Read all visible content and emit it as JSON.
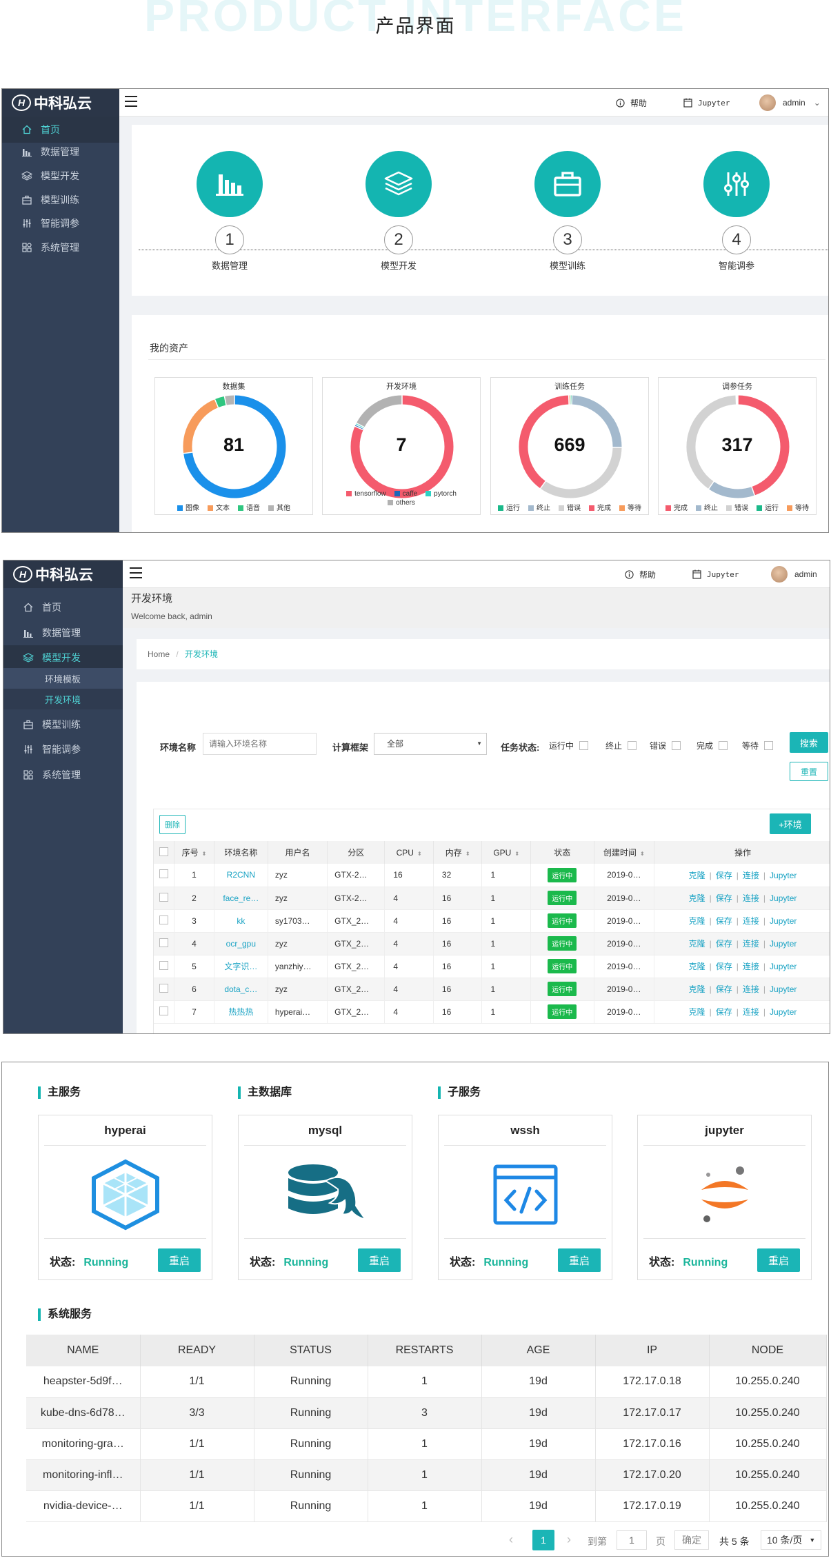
{
  "header": {
    "bg_text": "PRODUCT INTERFACE",
    "title": "产品界面"
  },
  "app": {
    "logo": "中科弘云",
    "help": "帮助",
    "jupyter": "Jupyter",
    "user": "admin"
  },
  "shot1": {
    "nav": [
      {
        "label": "首页",
        "icon": "home-icon"
      },
      {
        "label": "数据管理",
        "icon": "bar-chart-icon"
      },
      {
        "label": "模型开发",
        "icon": "layers-icon"
      },
      {
        "label": "模型训练",
        "icon": "briefcase-icon"
      },
      {
        "label": "智能调参",
        "icon": "sliders-icon"
      },
      {
        "label": "系统管理",
        "icon": "grid-icon"
      }
    ],
    "steps": [
      {
        "num": "1",
        "label": "数据管理",
        "icon": "bar-chart-icon"
      },
      {
        "num": "2",
        "label": "模型开发",
        "icon": "layers-icon"
      },
      {
        "num": "3",
        "label": "模型训练",
        "icon": "briefcase-icon"
      },
      {
        "num": "4",
        "label": "智能调参",
        "icon": "sliders-icon"
      }
    ],
    "assets_title": "我的资产"
  },
  "chart_data": [
    {
      "type": "pie",
      "title": "数据集",
      "total": "81",
      "series": [
        {
          "label": "图像",
          "value": 70,
          "color": "#1a90ea"
        },
        {
          "label": "文本",
          "value": 20,
          "color": "#f79b5b"
        },
        {
          "label": "语音",
          "value": 3,
          "color": "#2fc680"
        },
        {
          "label": "其他",
          "value": 3,
          "color": "#b4b4b4"
        }
      ]
    },
    {
      "type": "pie",
      "title": "开发环境",
      "total": "7",
      "series": [
        {
          "label": "tensorflow",
          "value": 75,
          "color": "#f45b6d"
        },
        {
          "label": "caffe",
          "value": 0.5,
          "color": "#1a66b8"
        },
        {
          "label": "pytorch",
          "value": 0.5,
          "color": "#2cd2c4"
        },
        {
          "label": "others",
          "value": 16,
          "color": "#b2b2b2"
        }
      ]
    },
    {
      "type": "pie",
      "title": "训练任务",
      "total": "669",
      "series": [
        {
          "label": "运行",
          "value": 0.5,
          "color": "#1bb98a"
        },
        {
          "label": "终止",
          "value": 25,
          "color": "#a3b9cd"
        },
        {
          "label": "错误",
          "value": 35,
          "color": "#d2d2d2"
        },
        {
          "label": "完成",
          "value": 40,
          "color": "#f45b6d"
        },
        {
          "label": "等待",
          "value": 0.5,
          "color": "#f79b5b"
        }
      ]
    },
    {
      "type": "pie",
      "title": "调参任务",
      "total": "317",
      "series": [
        {
          "label": "完成",
          "value": 45,
          "color": "#f45b6d"
        },
        {
          "label": "终止",
          "value": 15,
          "color": "#a3b9cd"
        },
        {
          "label": "错误",
          "value": 40,
          "color": "#d2d2d2"
        },
        {
          "label": "运行",
          "value": 0.3,
          "color": "#1bb98a"
        },
        {
          "label": "等待",
          "value": 0.3,
          "color": "#f79b5b"
        }
      ]
    }
  ],
  "shot2": {
    "nav": [
      {
        "label": "首页",
        "icon": "home-icon"
      },
      {
        "label": "数据管理",
        "icon": "bar-chart-icon"
      },
      {
        "label": "模型开发",
        "icon": "layers-icon"
      },
      {
        "label": "环境模板"
      },
      {
        "label": "开发环境"
      },
      {
        "label": "模型训练",
        "icon": "briefcase-icon"
      },
      {
        "label": "智能调参",
        "icon": "sliders-icon"
      },
      {
        "label": "系统管理",
        "icon": "grid-icon"
      }
    ],
    "page_title": "开发环境",
    "welcome": "Welcome back, admin",
    "breadcrumb": {
      "home": "Home",
      "sep": "/",
      "current": "开发环境"
    },
    "filters": {
      "name_label": "环境名称",
      "name_placeholder": "请输入环境名称",
      "framework_label": "计算框架",
      "framework_value": "全部",
      "status_label": "任务状态:",
      "statuses": [
        "运行中",
        "终止",
        "错误",
        "完成",
        "等待"
      ],
      "search": "搜索",
      "reset": "重置"
    },
    "delete": "删除",
    "add_env": "+环境",
    "columns": [
      "序号",
      "环境名称",
      "用户名",
      "分区",
      "CPU",
      "内存",
      "GPU",
      "状态",
      "创建时间",
      "操作"
    ],
    "actions": [
      "克隆",
      "保存",
      "连接",
      "Jupyter"
    ],
    "rows": [
      {
        "no": "1",
        "name": "R2CNN",
        "user": "zyz",
        "zone": "GTX-2…",
        "cpu": "16",
        "mem": "32",
        "gpu": "1",
        "status": "运行中",
        "created": "2019-0…"
      },
      {
        "no": "2",
        "name": "face_re…",
        "user": "zyz",
        "zone": "GTX-2…",
        "cpu": "4",
        "mem": "16",
        "gpu": "1",
        "status": "运行中",
        "created": "2019-0…"
      },
      {
        "no": "3",
        "name": "kk",
        "user": "sy1703…",
        "zone": "GTX_2…",
        "cpu": "4",
        "mem": "16",
        "gpu": "1",
        "status": "运行中",
        "created": "2019-0…"
      },
      {
        "no": "4",
        "name": "ocr_gpu",
        "user": "zyz",
        "zone": "GTX_2…",
        "cpu": "4",
        "mem": "16",
        "gpu": "1",
        "status": "运行中",
        "created": "2019-0…"
      },
      {
        "no": "5",
        "name": "文字识…",
        "user": "yanzhiy…",
        "zone": "GTX_2…",
        "cpu": "4",
        "mem": "16",
        "gpu": "1",
        "status": "运行中",
        "created": "2019-0…"
      },
      {
        "no": "6",
        "name": "dota_c…",
        "user": "zyz",
        "zone": "GTX_2…",
        "cpu": "4",
        "mem": "16",
        "gpu": "1",
        "status": "运行中",
        "created": "2019-0…"
      },
      {
        "no": "7",
        "name": "热热热",
        "user": "hyperai…",
        "zone": "GTX_2…",
        "cpu": "4",
        "mem": "16",
        "gpu": "1",
        "status": "运行中",
        "created": "2019-0…"
      }
    ]
  },
  "shot3": {
    "sections": {
      "main": "主服务",
      "db": "主数据库",
      "sub": "子服务",
      "sys": "系统服务"
    },
    "status_label": "状态:",
    "restart": "重启",
    "services": [
      {
        "name": "hyperai",
        "status": "Running",
        "icon": "cube-icon"
      },
      {
        "name": "mysql",
        "status": "Running",
        "icon": "mysql-icon"
      },
      {
        "name": "wssh",
        "status": "Running",
        "icon": "code-icon"
      },
      {
        "name": "jupyter",
        "status": "Running",
        "icon": "jupyter-icon"
      }
    ],
    "columns": [
      "NAME",
      "READY",
      "STATUS",
      "RESTARTS",
      "AGE",
      "IP",
      "NODE"
    ],
    "rows": [
      {
        "name": "heapster-5d9f…",
        "ready": "1/1",
        "status": "Running",
        "restarts": "1",
        "age": "19d",
        "ip": "172.17.0.18",
        "node": "10.255.0.240"
      },
      {
        "name": "kube-dns-6d78…",
        "ready": "3/3",
        "status": "Running",
        "restarts": "3",
        "age": "19d",
        "ip": "172.17.0.17",
        "node": "10.255.0.240"
      },
      {
        "name": "monitoring-gra…",
        "ready": "1/1",
        "status": "Running",
        "restarts": "1",
        "age": "19d",
        "ip": "172.17.0.16",
        "node": "10.255.0.240"
      },
      {
        "name": "monitoring-infl…",
        "ready": "1/1",
        "status": "Running",
        "restarts": "1",
        "age": "19d",
        "ip": "172.17.0.20",
        "node": "10.255.0.240"
      },
      {
        "name": "nvidia-device-…",
        "ready": "1/1",
        "status": "Running",
        "restarts": "1",
        "age": "19d",
        "ip": "172.17.0.19",
        "node": "10.255.0.240"
      }
    ],
    "pagination": {
      "page": "1",
      "goto": "到第",
      "input": "1",
      "unit": "页",
      "confirm": "确定",
      "total": "共 5 条",
      "per_page": "10 条/页"
    }
  }
}
